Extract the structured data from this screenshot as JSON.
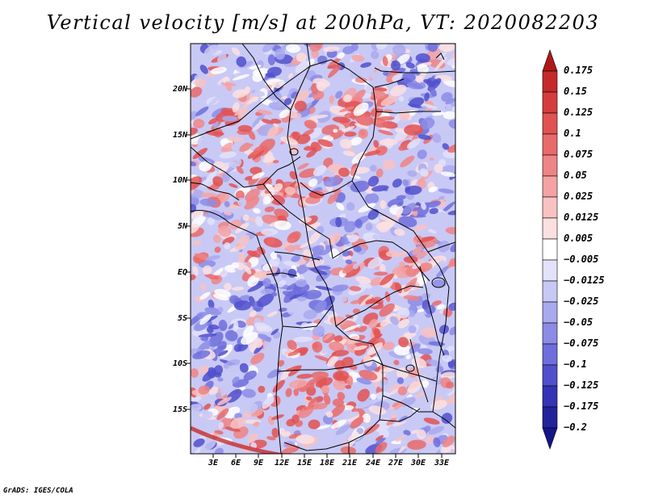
{
  "title": "Vertical velocity [m/s] at 200hPa, VT: 2020082203",
  "credit": "GrADS: IGES/COLA",
  "map": {
    "lat_labels": [
      "20N",
      "15N",
      "10N",
      "5N",
      "EQ",
      "5S",
      "10S",
      "15S"
    ],
    "lon_labels": [
      "3E",
      "6E",
      "9E",
      "12E",
      "15E",
      "18E",
      "21E",
      "24E",
      "27E",
      "30E",
      "33E"
    ]
  },
  "colorbar": {
    "labels": [
      "0.175",
      "0.15",
      "0.125",
      "0.1",
      "0.075",
      "0.05",
      "0.025",
      "0.0125",
      "0.005",
      "−0.005",
      "−0.0125",
      "−0.025",
      "−0.05",
      "−0.075",
      "−0.1",
      "−0.125",
      "−0.175",
      "−0.2"
    ],
    "colors": [
      "#b01818",
      "#c52a2a",
      "#d63c3c",
      "#e25252",
      "#e96a6a",
      "#ef8484",
      "#f4a2a2",
      "#f8c2c2",
      "#fbe0e0",
      "#ffffff",
      "#e2e2fb",
      "#c8c8f5",
      "#a9a9ee",
      "#8c8ce6",
      "#6e6edc",
      "#5050cc",
      "#3434b4",
      "#22229a",
      "#14148a"
    ]
  }
}
